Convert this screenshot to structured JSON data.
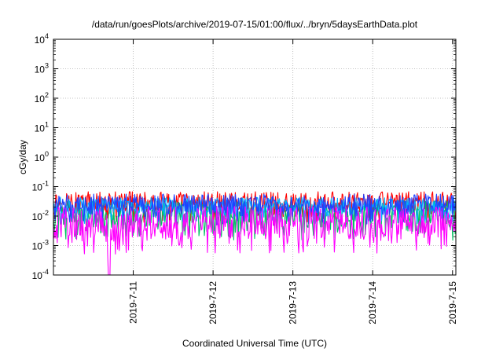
{
  "chart_data": {
    "type": "line",
    "title": "/data/run/goesPlots/archive/2019-07-15/01:00/flux/../bryn/5daysEarthData.plot",
    "xlabel": "Coordinated Universal Time (UTC)",
    "ylabel": "cGy/day",
    "y_scale": "log",
    "ylim": [
      0.0001,
      10000
    ],
    "y_ticks": [
      {
        "value": 10000,
        "base": "10",
        "exp": "4"
      },
      {
        "value": 1000,
        "base": "10",
        "exp": "3"
      },
      {
        "value": 100,
        "base": "10",
        "exp": "2"
      },
      {
        "value": 10,
        "base": "10",
        "exp": "1"
      },
      {
        "value": 1,
        "base": "10",
        "exp": "0"
      },
      {
        "value": 0.1,
        "base": "10",
        "exp": "-1"
      },
      {
        "value": 0.01,
        "base": "10",
        "exp": "-2"
      },
      {
        "value": 0.001,
        "base": "10",
        "exp": "-3"
      },
      {
        "value": 0.0001,
        "base": "10",
        "exp": "-4"
      }
    ],
    "xlim": [
      "2019-07-10 00:00",
      "2019-07-15 01:00"
    ],
    "x_ticks": [
      {
        "value": "2019-07-11 00:00",
        "label": "2019-7-11"
      },
      {
        "value": "2019-07-12 00:00",
        "label": "2019-7-12"
      },
      {
        "value": "2019-07-13 00:00",
        "label": "2019-7-13"
      },
      {
        "value": "2019-07-14 00:00",
        "label": "2019-7-14"
      },
      {
        "value": "2019-07-15 00:00",
        "label": "2019-7-15"
      }
    ],
    "grid": true,
    "series": [
      {
        "color": "#ff0000",
        "base": 0.03,
        "spread": 0.35
      },
      {
        "color": "#00c060",
        "base": 0.012,
        "spread": 0.45
      },
      {
        "color": "#00b0ff",
        "base": 0.022,
        "spread": 0.3
      },
      {
        "color": "#2040ff",
        "base": 0.025,
        "spread": 0.35
      },
      {
        "color": "#ff00ff",
        "base": 0.006,
        "spread": 0.55
      }
    ],
    "dropout": {
      "start": "2019-07-10 16:30",
      "end": "2019-07-10 17:10",
      "series_index": 4
    }
  }
}
